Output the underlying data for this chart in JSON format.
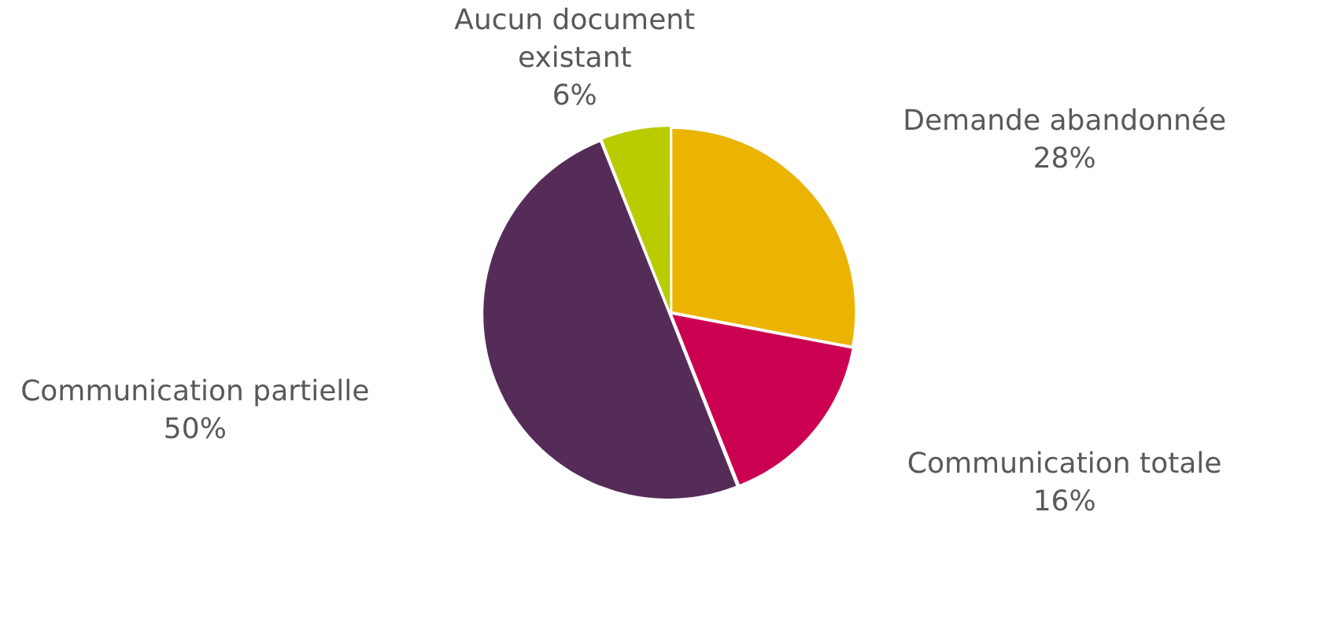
{
  "chart_data": {
    "type": "pie",
    "categories": [
      "Demande abandonnée",
      "Communication totale",
      "Communication partielle",
      "Aucun document existant"
    ],
    "values": [
      28,
      16,
      50,
      6
    ],
    "colors": [
      "#ebb400",
      "#cc0050",
      "#552c57",
      "#b8cc00"
    ],
    "value_labels": [
      "28%",
      "16%",
      "50%",
      "6%"
    ],
    "legend": false
  }
}
